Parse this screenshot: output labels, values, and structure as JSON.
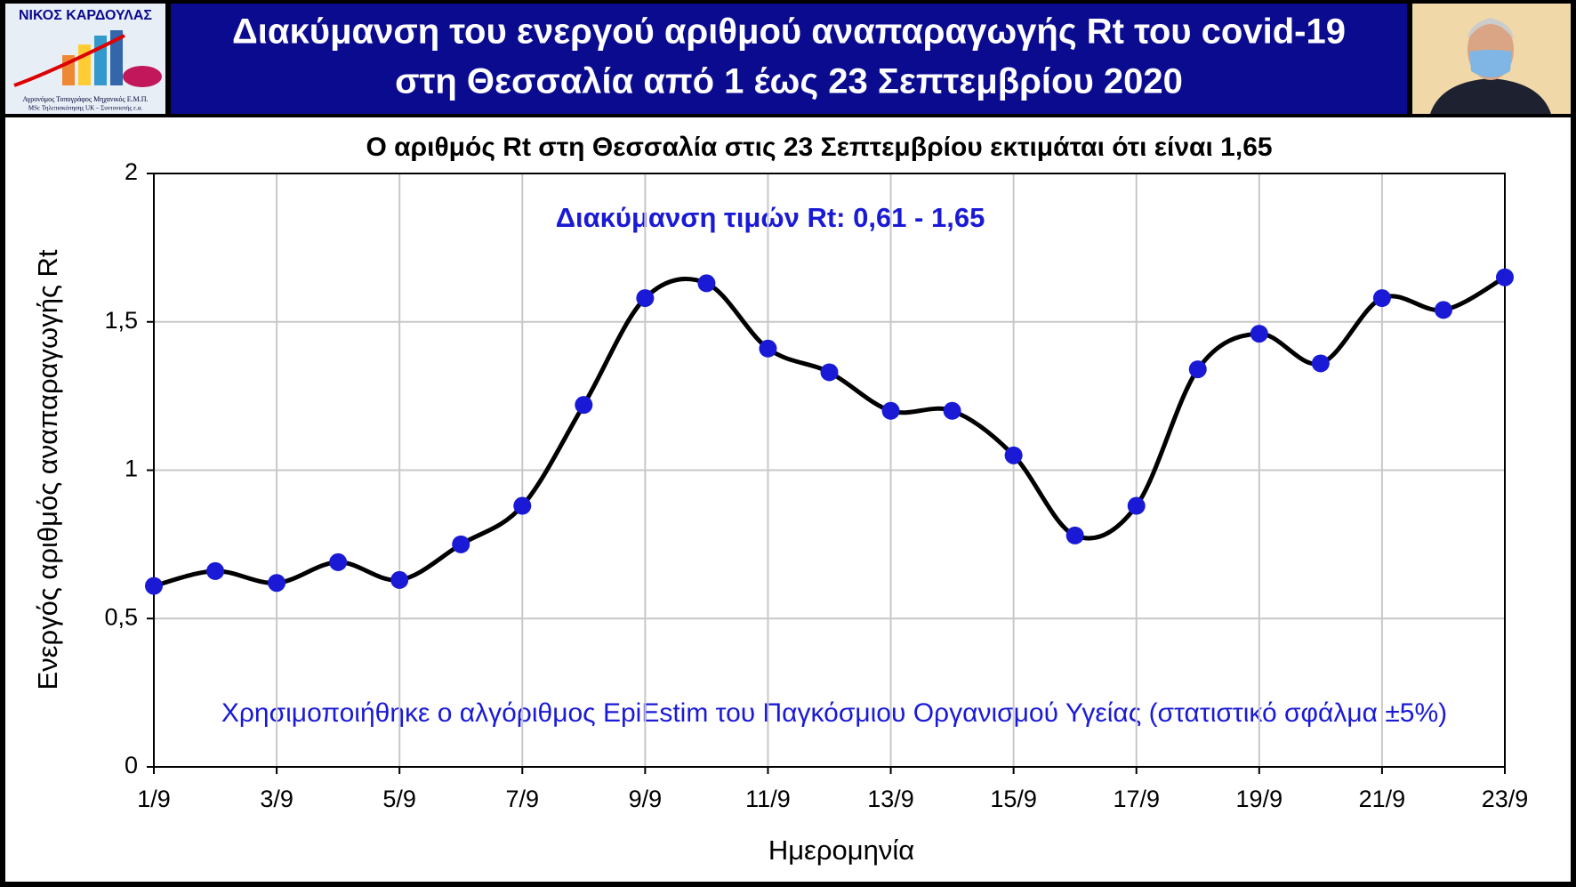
{
  "header": {
    "title": [
      "Διακύμανση του ενεργού αριθμού αναπαραγωγής Rt του covid-19",
      "στη Θεσσαλία από 1 έως 23 Σεπτεμβρίου 2020"
    ],
    "logo": {
      "name": "ΝΙΚΟΣ ΚΑΡΔΟΥΛΑΣ",
      "lines": [
        "Αγρονόμος Τοπογράφος Μηχανικός Ε.Μ.Π.",
        "MSc Τηλεπισκόπησης UK – Συντονιστής ε.α."
      ]
    }
  },
  "chart_data": {
    "type": "line",
    "title": "Ο αριθμός Rt στη Θεσσαλία στις 23 Σεπτεμβρίου εκτιμάται ότι είναι 1,65",
    "annotations": [
      "Διακύμανση τιμών Rt: 0,61 - 1,65",
      "Χρησιμοποιήθηκε ο αλγόριθμος EpiEstim του Παγκόσμιου Οργανισμού Υγείας (στατιστικό σφάλμα ±5%)"
    ],
    "x_label": "Ημερομηνία",
    "y_label": "Ενεργός αριθμός αναπαραγωγής Rt",
    "categories": [
      "1/9",
      null,
      "3/9",
      null,
      "5/9",
      null,
      "7/9",
      null,
      "9/9",
      null,
      "11/9",
      null,
      "13/9",
      null,
      "15/9",
      null,
      "17/9",
      null,
      "19/9",
      null,
      "21/9",
      null,
      "23/9"
    ],
    "series": [
      {
        "name": "Rt",
        "color": "#1a1ad6",
        "line_color": "#000000",
        "values": [
          0.61,
          0.66,
          0.62,
          0.69,
          0.63,
          0.75,
          0.88,
          1.22,
          1.58,
          1.63,
          1.41,
          1.33,
          1.2,
          1.2,
          1.05,
          0.78,
          0.88,
          1.34,
          1.46,
          1.36,
          1.58,
          1.54,
          1.65
        ]
      }
    ],
    "ylim": [
      0,
      2
    ],
    "yticks": [
      0,
      {
        "value": 0.5,
        "label": "0,5"
      },
      1,
      {
        "value": 1.5,
        "label": "1,5"
      },
      2
    ],
    "grid": true
  }
}
